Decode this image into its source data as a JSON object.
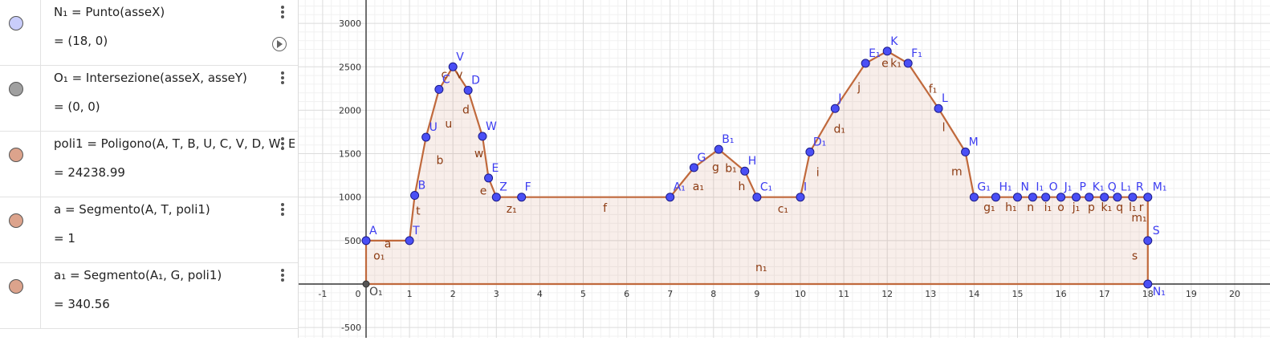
{
  "algebra": [
    {
      "def": "N₁ = Punto(asseX)",
      "val": "= (18, 0)",
      "color": "#c9cdfb",
      "play": true
    },
    {
      "def": "O₁ = Intersezione(asseX, asseY)",
      "val": "= (0, 0)",
      "color": "#a0a0a0",
      "play": false
    },
    {
      "def": "poli1 = Poligono(A, T, B, U, C, V, D, W, E,",
      "val": "= 24238.99",
      "color": "#dca38c",
      "play": false
    },
    {
      "def": "a = Segmento(A, T, poli1)",
      "val": "= 1",
      "color": "#dca38c",
      "play": false
    },
    {
      "def": "a₁ = Segmento(A₁, G, poli1)",
      "val": "= 340.56",
      "color": "#dca38c",
      "play": false
    }
  ],
  "chart_data": {
    "type": "area",
    "xlim": [
      -1.4,
      20.5
    ],
    "ylim": [
      -550,
      3250
    ],
    "x_ticks": [
      "-1",
      "0",
      "1",
      "2",
      "3",
      "4",
      "5",
      "6",
      "7",
      "8",
      "9",
      "10",
      "11",
      "12",
      "13",
      "14",
      "15",
      "16",
      "17",
      "18",
      "19",
      "20"
    ],
    "y_ticks": [
      "-500",
      "500",
      "1000",
      "1500",
      "2000",
      "2500",
      "3000"
    ],
    "grid": true,
    "colors": {
      "polygon_fill": "#c87d5a",
      "polygon_stroke": "#c0693c",
      "point": "#4a4ff5",
      "point_label": "#3c3cf0",
      "segment_label": "#8c3b12"
    },
    "points": [
      {
        "name": "A",
        "x": 0,
        "y": 500
      },
      {
        "name": "T",
        "x": 1,
        "y": 500
      },
      {
        "name": "B",
        "x": 1.12,
        "y": 1020
      },
      {
        "name": "U",
        "x": 1.38,
        "y": 1690
      },
      {
        "name": "C",
        "x": 1.68,
        "y": 2240
      },
      {
        "name": "V",
        "x": 2,
        "y": 2500
      },
      {
        "name": "D",
        "x": 2.35,
        "y": 2230
      },
      {
        "name": "W",
        "x": 2.68,
        "y": 1700
      },
      {
        "name": "E",
        "x": 2.82,
        "y": 1220
      },
      {
        "name": "Z",
        "x": 3,
        "y": 1000
      },
      {
        "name": "F",
        "x": 3.58,
        "y": 1000
      },
      {
        "name": "A₁",
        "x": 7,
        "y": 1000
      },
      {
        "name": "G",
        "x": 7.55,
        "y": 1340
      },
      {
        "name": "B₁",
        "x": 8.12,
        "y": 1550
      },
      {
        "name": "H",
        "x": 8.72,
        "y": 1300
      },
      {
        "name": "C₁",
        "x": 9,
        "y": 1000
      },
      {
        "name": "I",
        "x": 10,
        "y": 1000
      },
      {
        "name": "D₁",
        "x": 10.22,
        "y": 1520
      },
      {
        "name": "J",
        "x": 10.8,
        "y": 2020
      },
      {
        "name": "E₁",
        "x": 11.5,
        "y": 2540
      },
      {
        "name": "K",
        "x": 12,
        "y": 2680
      },
      {
        "name": "F₁",
        "x": 12.48,
        "y": 2540
      },
      {
        "name": "L",
        "x": 13.18,
        "y": 2020
      },
      {
        "name": "M",
        "x": 13.8,
        "y": 1520
      },
      {
        "name": "G₁",
        "x": 14,
        "y": 1000
      },
      {
        "name": "H₁",
        "x": 14.5,
        "y": 1000
      },
      {
        "name": "N",
        "x": 15,
        "y": 1000
      },
      {
        "name": "I₁",
        "x": 15.35,
        "y": 1000
      },
      {
        "name": "O",
        "x": 15.65,
        "y": 1000
      },
      {
        "name": "J₁",
        "x": 16,
        "y": 1000
      },
      {
        "name": "P",
        "x": 16.35,
        "y": 1000
      },
      {
        "name": "K₁",
        "x": 16.65,
        "y": 1000
      },
      {
        "name": "Q",
        "x": 17,
        "y": 1000
      },
      {
        "name": "L₁",
        "x": 17.3,
        "y": 1000
      },
      {
        "name": "R",
        "x": 17.65,
        "y": 1000
      },
      {
        "name": "M₁",
        "x": 18,
        "y": 1000
      },
      {
        "name": "S",
        "x": 18,
        "y": 500
      },
      {
        "name": "N₁",
        "x": 18,
        "y": 0
      },
      {
        "name": "O₁",
        "x": 0,
        "y": 0
      }
    ],
    "segment_labels": [
      {
        "name": "a",
        "x": 0.5,
        "y": 420
      },
      {
        "name": "o₁",
        "x": 0.3,
        "y": 280
      },
      {
        "name": "t",
        "x": 1.2,
        "y": 800
      },
      {
        "name": "b",
        "x": 1.7,
        "y": 1380
      },
      {
        "name": "u",
        "x": 1.9,
        "y": 1800
      },
      {
        "name": "c",
        "x": 1.8,
        "y": 2370
      },
      {
        "name": "v",
        "x": 2.15,
        "y": 2370
      },
      {
        "name": "d",
        "x": 2.3,
        "y": 1960
      },
      {
        "name": "w",
        "x": 2.6,
        "y": 1460
      },
      {
        "name": "e",
        "x": 2.7,
        "y": 1030
      },
      {
        "name": "z₁",
        "x": 3.35,
        "y": 820
      },
      {
        "name": "f",
        "x": 5.5,
        "y": 830
      },
      {
        "name": "a₁",
        "x": 7.65,
        "y": 1080
      },
      {
        "name": "g",
        "x": 8.05,
        "y": 1300
      },
      {
        "name": "b₁",
        "x": 8.4,
        "y": 1290
      },
      {
        "name": "h",
        "x": 8.65,
        "y": 1080
      },
      {
        "name": "c₁",
        "x": 9.6,
        "y": 820
      },
      {
        "name": "i",
        "x": 10.4,
        "y": 1240
      },
      {
        "name": "d₁",
        "x": 10.9,
        "y": 1740
      },
      {
        "name": "j",
        "x": 11.35,
        "y": 2220
      },
      {
        "name": "e",
        "x": 11.95,
        "y": 2500
      },
      {
        "name": "k₁",
        "x": 12.2,
        "y": 2500
      },
      {
        "name": "f₁",
        "x": 13.05,
        "y": 2200
      },
      {
        "name": "l",
        "x": 13.3,
        "y": 1760
      },
      {
        "name": "m",
        "x": 13.6,
        "y": 1250
      },
      {
        "name": "g₁",
        "x": 14.35,
        "y": 840
      },
      {
        "name": "h₁",
        "x": 14.85,
        "y": 840
      },
      {
        "name": "n",
        "x": 15.3,
        "y": 840
      },
      {
        "name": "i₁",
        "x": 15.7,
        "y": 840
      },
      {
        "name": "o",
        "x": 16.0,
        "y": 840
      },
      {
        "name": "j₁",
        "x": 16.35,
        "y": 840
      },
      {
        "name": "p",
        "x": 16.7,
        "y": 840
      },
      {
        "name": "k₁",
        "x": 17.05,
        "y": 840
      },
      {
        "name": "q",
        "x": 17.35,
        "y": 840
      },
      {
        "name": "l₁",
        "x": 17.65,
        "y": 840
      },
      {
        "name": "r",
        "x": 17.85,
        "y": 840
      },
      {
        "name": "m₁",
        "x": 17.8,
        "y": 720
      },
      {
        "name": "s",
        "x": 17.7,
        "y": 280
      },
      {
        "name": "n₁",
        "x": 9.1,
        "y": 150
      }
    ]
  }
}
